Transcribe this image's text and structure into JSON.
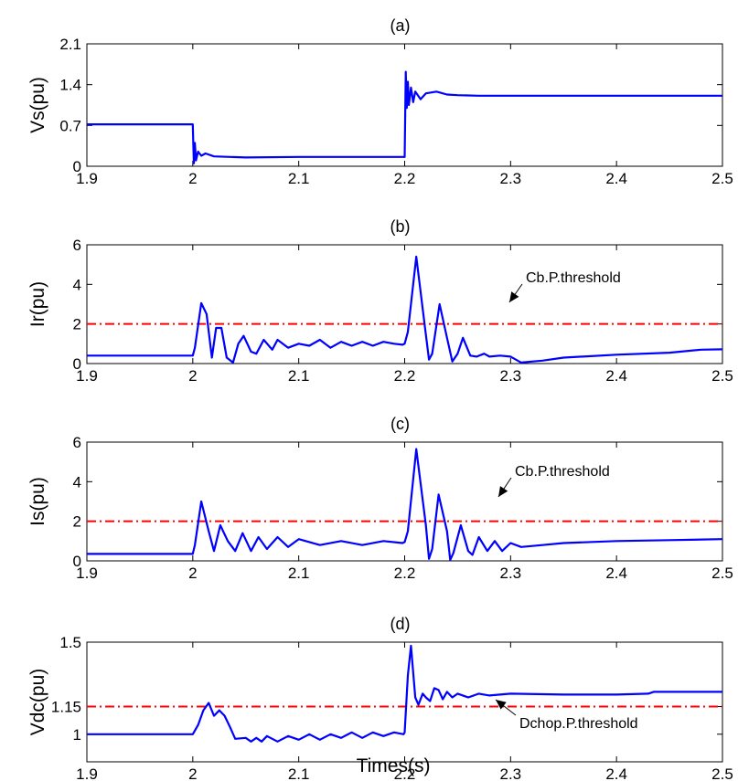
{
  "figure": {
    "xlabel": "Times(s)"
  },
  "chart_data": [
    {
      "type": "line",
      "title": "(a)",
      "ylabel": "Vs(pu)",
      "xlim": [
        1.9,
        2.5
      ],
      "ylim": [
        0,
        2.1
      ],
      "xticks": [
        "1.9",
        "2",
        "2.1",
        "2.2",
        "2.3",
        "2.4",
        "2.5"
      ],
      "yticks": [
        "0",
        "0.7",
        "1.4",
        "2.1"
      ],
      "series": [
        {
          "color": "#0000ff",
          "x": [
            1.9,
            1.999,
            2.0,
            2.001,
            2.002,
            2.003,
            2.005,
            2.008,
            2.012,
            2.02,
            2.05,
            2.1,
            2.15,
            2.199,
            2.2,
            2.201,
            2.202,
            2.203,
            2.204,
            2.206,
            2.208,
            2.21,
            2.215,
            2.22,
            2.23,
            2.24,
            2.25,
            2.27,
            2.3,
            2.4,
            2.5
          ],
          "y": [
            0.72,
            0.72,
            0.72,
            0.05,
            0.4,
            0.1,
            0.25,
            0.18,
            0.22,
            0.17,
            0.15,
            0.16,
            0.16,
            0.16,
            0.16,
            1.62,
            1.0,
            1.45,
            1.05,
            1.35,
            1.1,
            1.28,
            1.15,
            1.25,
            1.28,
            1.23,
            1.22,
            1.21,
            1.21,
            1.21,
            1.21
          ]
        }
      ]
    },
    {
      "type": "line",
      "title": "(b)",
      "ylabel": "Ir(pu)",
      "xlim": [
        1.9,
        2.5
      ],
      "ylim": [
        0,
        6
      ],
      "xticks": [
        "1.9",
        "2",
        "2.1",
        "2.2",
        "2.3",
        "2.4",
        "2.5"
      ],
      "yticks": [
        "0",
        "2",
        "4",
        "6"
      ],
      "threshold": {
        "value": 2,
        "color": "#ff0000"
      },
      "annotation": "Cb.P.threshold",
      "series": [
        {
          "color": "#0000ff",
          "x": [
            1.9,
            2.0,
            2.002,
            2.008,
            2.013,
            2.018,
            2.022,
            2.027,
            2.032,
            2.038,
            2.043,
            2.048,
            2.055,
            2.06,
            2.067,
            2.075,
            2.08,
            2.09,
            2.1,
            2.11,
            2.12,
            2.13,
            2.14,
            2.15,
            2.16,
            2.17,
            2.18,
            2.19,
            2.198,
            2.2,
            2.203,
            2.211,
            2.219,
            2.223,
            2.226,
            2.233,
            2.24,
            2.245,
            2.25,
            2.255,
            2.262,
            2.268,
            2.275,
            2.28,
            2.29,
            2.3,
            2.31,
            2.32,
            2.33,
            2.35,
            2.4,
            2.45,
            2.48,
            2.5
          ],
          "y": [
            0.4,
            0.4,
            0.8,
            3.05,
            2.5,
            0.3,
            1.8,
            1.8,
            0.3,
            0.05,
            1.0,
            1.4,
            0.6,
            0.5,
            1.2,
            0.7,
            1.2,
            0.8,
            1.0,
            0.9,
            1.2,
            0.8,
            1.1,
            0.9,
            1.1,
            0.9,
            1.1,
            1.0,
            0.95,
            1.0,
            1.6,
            5.4,
            1.9,
            0.2,
            0.5,
            3.0,
            1.3,
            0.1,
            0.5,
            1.3,
            0.4,
            0.35,
            0.5,
            0.35,
            0.4,
            0.35,
            0.05,
            0.1,
            0.15,
            0.3,
            0.45,
            0.55,
            0.7,
            0.72
          ]
        }
      ]
    },
    {
      "type": "line",
      "title": "(c)",
      "ylabel": "Is(pu)",
      "xlim": [
        1.9,
        2.5
      ],
      "ylim": [
        0,
        6
      ],
      "xticks": [
        "1.9",
        "2",
        "2.1",
        "2.2",
        "2.3",
        "2.4",
        "2.5"
      ],
      "yticks": [
        "0",
        "2",
        "4",
        "6"
      ],
      "threshold": {
        "value": 2,
        "color": "#ff0000"
      },
      "annotation": "Cb.P.threshold",
      "series": [
        {
          "color": "#0000ff",
          "x": [
            1.9,
            2.0,
            2.002,
            2.008,
            2.015,
            2.02,
            2.026,
            2.033,
            2.04,
            2.047,
            2.055,
            2.062,
            2.07,
            2.08,
            2.09,
            2.1,
            2.12,
            2.14,
            2.16,
            2.18,
            2.198,
            2.2,
            2.203,
            2.211,
            2.22,
            2.223,
            2.226,
            2.232,
            2.24,
            2.243,
            2.246,
            2.253,
            2.26,
            2.264,
            2.27,
            2.278,
            2.285,
            2.292,
            2.3,
            2.31,
            2.33,
            2.35,
            2.4,
            2.45,
            2.5
          ],
          "y": [
            0.35,
            0.35,
            0.8,
            3.0,
            1.5,
            0.5,
            1.8,
            1.0,
            0.5,
            1.4,
            0.5,
            1.2,
            0.6,
            1.2,
            0.7,
            1.1,
            0.8,
            1.0,
            0.8,
            1.0,
            0.9,
            0.95,
            1.5,
            5.65,
            1.8,
            0.1,
            0.6,
            3.35,
            1.5,
            0.05,
            0.4,
            1.8,
            0.5,
            0.3,
            1.2,
            0.5,
            1.0,
            0.5,
            0.9,
            0.7,
            0.8,
            0.9,
            1.0,
            1.05,
            1.1
          ]
        }
      ]
    },
    {
      "type": "line",
      "title": "(d)",
      "ylabel": "Vdc(pu)",
      "xlim": [
        1.9,
        2.5
      ],
      "ylim": [
        0.85,
        1.5
      ],
      "xticks": [
        "1.9",
        "2",
        "2.1",
        "2.2",
        "2.3",
        "2.4",
        "2.5"
      ],
      "yticks": [
        "1",
        "1.15",
        "1.5"
      ],
      "threshold": {
        "value": 1.15,
        "color": "#ff0000"
      },
      "annotation": "Dchop.P.threshold",
      "series": [
        {
          "color": "#0000ff",
          "x": [
            1.9,
            2.0,
            2.005,
            2.01,
            2.015,
            2.02,
            2.025,
            2.03,
            2.035,
            2.04,
            2.05,
            2.055,
            2.06,
            2.065,
            2.07,
            2.08,
            2.09,
            2.1,
            2.11,
            2.12,
            2.13,
            2.14,
            2.15,
            2.16,
            2.17,
            2.18,
            2.19,
            2.199,
            2.2,
            2.203,
            2.206,
            2.21,
            2.213,
            2.217,
            2.22,
            2.224,
            2.228,
            2.232,
            2.236,
            2.24,
            2.245,
            2.25,
            2.255,
            2.26,
            2.27,
            2.28,
            2.3,
            2.35,
            2.4,
            2.43,
            2.435,
            2.5
          ],
          "y": [
            1.0,
            1.0,
            1.05,
            1.13,
            1.17,
            1.1,
            1.13,
            1.1,
            1.04,
            0.975,
            0.98,
            0.96,
            0.98,
            0.96,
            0.99,
            0.96,
            0.99,
            0.97,
            1.0,
            0.97,
            1.0,
            0.98,
            1.01,
            0.98,
            1.01,
            0.99,
            1.01,
            1.0,
            1.01,
            1.32,
            1.48,
            1.2,
            1.16,
            1.22,
            1.2,
            1.18,
            1.25,
            1.24,
            1.19,
            1.23,
            1.2,
            1.22,
            1.21,
            1.2,
            1.22,
            1.21,
            1.22,
            1.215,
            1.215,
            1.22,
            1.23,
            1.23
          ]
        }
      ]
    }
  ]
}
